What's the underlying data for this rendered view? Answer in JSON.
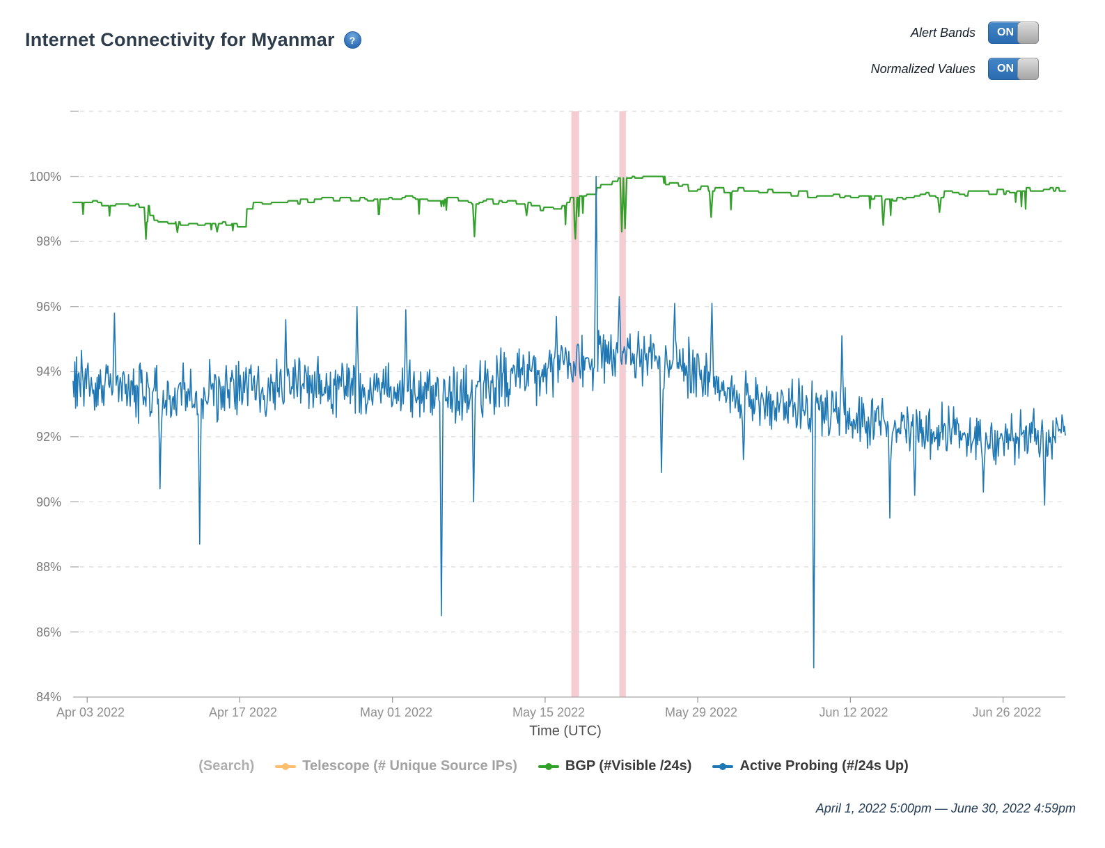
{
  "header": {
    "title": "Internet Connectivity for Myanmar",
    "help_icon": "?"
  },
  "controls": {
    "alert_bands": {
      "label": "Alert Bands",
      "state": "ON"
    },
    "normalized_values": {
      "label": "Normalized Values",
      "state": "ON"
    }
  },
  "legend": {
    "search": "(Search)",
    "items": [
      {
        "label": "Telescope (# Unique Source IPs)",
        "color": "#FDBF6F",
        "enabled": false
      },
      {
        "label": "BGP (#Visible /24s)",
        "color": "#33A02C",
        "enabled": true
      },
      {
        "label": "Active Probing (#/24s Up)",
        "color": "#1F78B4",
        "enabled": true
      }
    ]
  },
  "footer": {
    "date_range": "April 1, 2022 5:00pm — June 30, 2022 4:59pm"
  },
  "chart_data": {
    "type": "line",
    "title": "Internet Connectivity for Myanmar",
    "xlabel": "Time (UTC)",
    "ylabel": "",
    "x_axis": {
      "start": "April 1, 2022 5:00pm UTC",
      "end": "June 30, 2022 4:59pm UTC",
      "domain_days": [
        0,
        91
      ],
      "ticks": [
        "Apr 03 2022",
        "Apr 17 2022",
        "May 01 2022",
        "May 15 2022",
        "May 29 2022",
        "Jun 12 2022",
        "Jun 26 2022"
      ],
      "tick_days": [
        1.29,
        15.29,
        29.29,
        43.29,
        57.29,
        71.29,
        85.29
      ]
    },
    "y_axis": {
      "unit": "%",
      "min": 84,
      "max": 102,
      "grid_step": 2,
      "top_gridline_unlabeled": 102,
      "ticks": [
        "100%",
        "98%",
        "96%",
        "94%",
        "92%",
        "90%",
        "88%",
        "86%",
        "84%"
      ],
      "tick_values": [
        100,
        98,
        96,
        94,
        92,
        90,
        88,
        86,
        84
      ],
      "grid_color": "#d9d9d9",
      "axis_color": "#a8a8a8"
    },
    "alert_bands": {
      "color": "#F6CCD3",
      "intervals_days": [
        [
          45.7,
          46.4
        ],
        [
          50.1,
          50.7
        ]
      ]
    },
    "series": [
      {
        "name": "BGP (#Visible /24s)",
        "color": "#33A02C",
        "style": "step-noisy",
        "stroke_width": 2.2,
        "baseline_day_value": [
          [
            0,
            99.2
          ],
          [
            3,
            99.15
          ],
          [
            6.5,
            99.1
          ],
          [
            7.2,
            98.62
          ],
          [
            9,
            98.55
          ],
          [
            12,
            98.5
          ],
          [
            15.6,
            98.55
          ],
          [
            16.1,
            99.1
          ],
          [
            18,
            99.15
          ],
          [
            20,
            99.2
          ],
          [
            23,
            99.28
          ],
          [
            27,
            99.3
          ],
          [
            31,
            99.32
          ],
          [
            35,
            99.28
          ],
          [
            39,
            99.22
          ],
          [
            42,
            99.1
          ],
          [
            43.5,
            99.0
          ],
          [
            44.5,
            99.15
          ],
          [
            45.5,
            99.3
          ],
          [
            46.5,
            99.35
          ],
          [
            47.5,
            99.55
          ],
          [
            48.5,
            99.75
          ],
          [
            49.5,
            99.9
          ],
          [
            50.2,
            100
          ],
          [
            53.5,
            100
          ],
          [
            54.3,
            99.8
          ],
          [
            55.5,
            99.68
          ],
          [
            57,
            99.62
          ],
          [
            60,
            99.58
          ],
          [
            63,
            99.52
          ],
          [
            66,
            99.48
          ],
          [
            69,
            99.42
          ],
          [
            72,
            99.36
          ],
          [
            74.5,
            99.3
          ],
          [
            77,
            99.4
          ],
          [
            80,
            99.46
          ],
          [
            83,
            99.5
          ],
          [
            86,
            99.52
          ],
          [
            88,
            99.58
          ],
          [
            90,
            99.62
          ],
          [
            91,
            99.6
          ]
        ],
        "dips_day_value": [
          [
            6.7,
            98.07
          ],
          [
            9.6,
            98.28
          ],
          [
            13.2,
            98.3
          ],
          [
            36.8,
            98.15
          ],
          [
            41.6,
            98.8
          ],
          [
            46.1,
            98.08
          ],
          [
            50.35,
            98.3
          ],
          [
            50.6,
            98.4
          ],
          [
            58.5,
            98.75
          ],
          [
            74.3,
            98.5
          ],
          [
            79.5,
            98.9
          ]
        ],
        "step_jitter": 0.09,
        "dip_probability": 0.022,
        "dip_depth_range": [
          0.15,
          0.6
        ],
        "value_cap": 100
      },
      {
        "name": "Active Probing (#/24s Up)",
        "color": "#1F78B4",
        "style": "noisy",
        "stroke_width": 1.6,
        "baseline_day_value": [
          [
            0,
            93.7
          ],
          [
            3,
            93.6
          ],
          [
            6,
            93.4
          ],
          [
            9,
            93.3
          ],
          [
            12,
            93.35
          ],
          [
            15,
            93.5
          ],
          [
            18,
            93.55
          ],
          [
            21,
            93.5
          ],
          [
            24,
            93.55
          ],
          [
            27,
            93.5
          ],
          [
            30,
            93.45
          ],
          [
            33,
            93.3
          ],
          [
            36,
            93.35
          ],
          [
            39,
            93.7
          ],
          [
            42,
            93.95
          ],
          [
            45,
            94.15
          ],
          [
            48,
            94.3
          ],
          [
            50,
            94.5
          ],
          [
            52,
            94.45
          ],
          [
            54,
            94.35
          ],
          [
            56,
            94.2
          ],
          [
            58,
            93.8
          ],
          [
            60,
            93.4
          ],
          [
            62,
            93.1
          ],
          [
            64,
            92.95
          ],
          [
            66,
            92.9
          ],
          [
            68,
            92.9
          ],
          [
            70,
            92.75
          ],
          [
            72,
            92.55
          ],
          [
            74,
            92.4
          ],
          [
            76,
            92.2
          ],
          [
            78,
            92.1
          ],
          [
            80,
            92.1
          ],
          [
            82,
            92.05
          ],
          [
            84,
            92.0
          ],
          [
            86,
            92.0
          ],
          [
            88,
            92.05
          ],
          [
            90,
            92.1
          ],
          [
            91,
            92.1
          ]
        ],
        "noise_amplitude_day_value": [
          [
            0,
            1.05
          ],
          [
            40,
            1.1
          ],
          [
            57,
            1.1
          ],
          [
            60,
            1.0
          ],
          [
            91,
            0.95
          ]
        ],
        "spikes_day_value": [
          [
            3.8,
            95.8
          ],
          [
            8.0,
            90.4
          ],
          [
            11.6,
            88.7
          ],
          [
            19.5,
            95.6
          ],
          [
            26.0,
            96.0
          ],
          [
            30.5,
            95.9
          ],
          [
            33.8,
            86.5
          ],
          [
            36.7,
            90.0
          ],
          [
            44.3,
            95.7
          ],
          [
            48.0,
            100.0
          ],
          [
            50.1,
            96.3
          ],
          [
            54.0,
            90.9
          ],
          [
            55.2,
            96.1
          ],
          [
            58.6,
            96.1
          ],
          [
            61.5,
            91.3
          ],
          [
            67.9,
            84.9
          ],
          [
            70.5,
            95.1
          ],
          [
            74.9,
            89.5
          ],
          [
            77.2,
            90.2
          ],
          [
            83.5,
            90.3
          ],
          [
            89.1,
            89.9
          ]
        ],
        "value_cap": 100
      }
    ],
    "samples_per_series": 1200,
    "random_seed": 42,
    "legend_position": "bottom",
    "grid": true
  }
}
